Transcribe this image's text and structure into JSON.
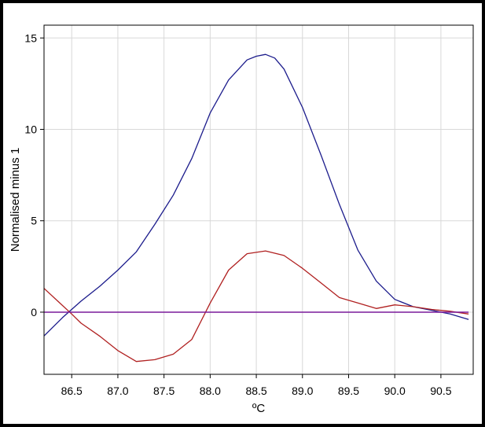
{
  "chart_data": {
    "type": "line",
    "title": "",
    "xlabel": "ºC",
    "ylabel": "Normalised minus 1",
    "xlim": [
      86.2,
      90.85
    ],
    "ylim": [
      -3.4,
      15.7
    ],
    "xticks": [
      "86.5",
      "87.0",
      "87.5",
      "88.0",
      "88.5",
      "89.0",
      "89.5",
      "90.0",
      "90.5"
    ],
    "yticks": [
      "0",
      "5",
      "10",
      "15"
    ],
    "grid": true,
    "legend": "none",
    "series": [
      {
        "color": "#1c1c8c",
        "x": [
          86.2,
          86.4,
          86.6,
          86.8,
          87.0,
          87.2,
          87.4,
          87.6,
          87.8,
          88.0,
          88.2,
          88.4,
          88.5,
          88.6,
          88.7,
          88.8,
          89.0,
          89.2,
          89.4,
          89.6,
          89.8,
          90.0,
          90.2,
          90.4,
          90.6,
          90.8
        ],
        "y": [
          -1.3,
          -0.3,
          0.6,
          1.4,
          2.3,
          3.3,
          4.8,
          6.4,
          8.4,
          10.9,
          12.7,
          13.8,
          14.0,
          14.1,
          13.9,
          13.3,
          11.2,
          8.6,
          5.9,
          3.4,
          1.7,
          0.7,
          0.3,
          0.1,
          -0.1,
          -0.4
        ]
      },
      {
        "color": "#b02020",
        "x": [
          86.2,
          86.35,
          86.5,
          86.6,
          86.8,
          87.0,
          87.2,
          87.4,
          87.6,
          87.8,
          88.0,
          88.2,
          88.4,
          88.6,
          88.8,
          89.0,
          89.2,
          89.4,
          89.6,
          89.8,
          90.0,
          90.2,
          90.4,
          90.6,
          90.8
        ],
        "y": [
          1.3,
          0.6,
          -0.1,
          -0.6,
          -1.3,
          -2.1,
          -2.7,
          -2.6,
          -2.3,
          -1.5,
          0.5,
          2.3,
          3.2,
          3.35,
          3.1,
          2.4,
          1.6,
          0.8,
          0.5,
          0.2,
          0.4,
          0.3,
          0.15,
          0.05,
          -0.1
        ]
      },
      {
        "color": "#7a1a9a",
        "x": [
          86.2,
          90.8
        ],
        "y": [
          0,
          0
        ]
      }
    ]
  }
}
